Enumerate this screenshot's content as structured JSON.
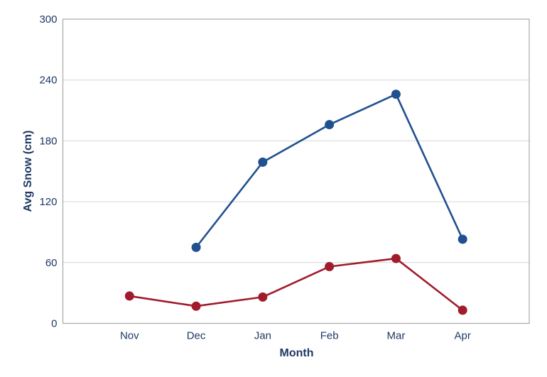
{
  "chart_data": {
    "type": "line",
    "title": "",
    "xlabel": "Month",
    "ylabel": "Avg Snow (cm)",
    "categories": [
      "Nov",
      "Dec",
      "Jan",
      "Feb",
      "Mar",
      "Apr"
    ],
    "series": [
      {
        "name": "blue-series",
        "color": "#20508F",
        "values": [
          null,
          75,
          159,
          196,
          226,
          83
        ]
      },
      {
        "name": "red-series",
        "color": "#A01C2C",
        "values": [
          27,
          17,
          26,
          56,
          64,
          13
        ]
      }
    ],
    "ylim": [
      0,
      300
    ],
    "yticks": [
      0,
      60,
      120,
      180,
      240,
      300
    ],
    "grid": true,
    "legend_position": "none",
    "marker": "circle",
    "colors": {
      "axis_text": "#1F3864",
      "gridline": "#D6D6D6",
      "plot_border": "#A9A9A9",
      "background": "#FFFFFF"
    }
  }
}
